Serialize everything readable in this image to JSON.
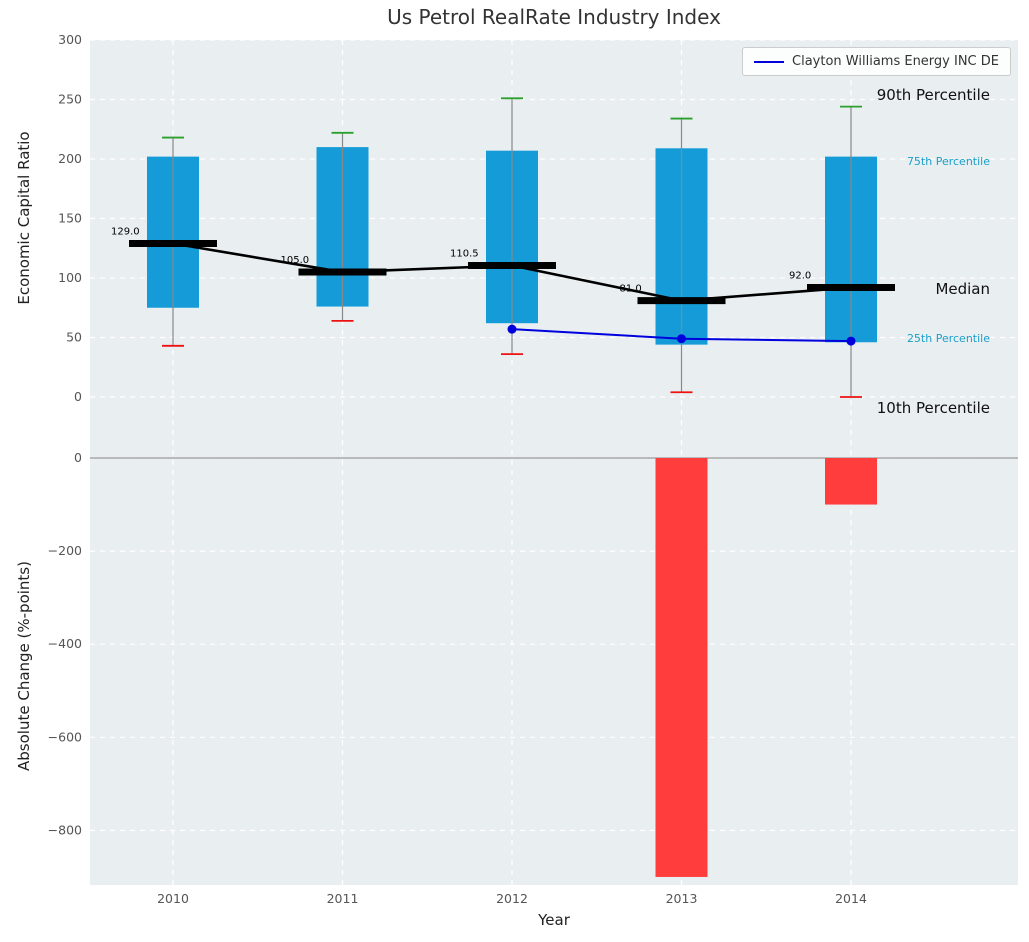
{
  "title": "Us Petrol RealRate Industry Index",
  "legend": {
    "series_label": "Clayton Williams Energy INC DE"
  },
  "axes": {
    "top_ylabel": "Economic Capital Ratio",
    "bottom_ylabel": "Absolute Change (%-points)",
    "xlabel": "Year"
  },
  "right_labels": {
    "p90": "90th Percentile",
    "p75": "75th Percentile",
    "median": "Median",
    "p25": "25th Percentile",
    "p10": "10th Percentile"
  },
  "colors": {
    "bar_blue": "#159cd8",
    "bar_red": "#ff3d3d",
    "cap_green": "#2ca02c",
    "cap_red": "#ee1111",
    "median_black": "#000000",
    "clayton_blue": "#0000dd",
    "whisker_gray": "#888888",
    "plot_bg": "#e9eef1",
    "grid_white": "#ffffff",
    "cyan_label": "#1a9fc9",
    "tick_color": "#555555",
    "zero_line": "#999999"
  },
  "chart_data": [
    {
      "type": "boxplot",
      "title": "Us Petrol RealRate Industry Index",
      "xlabel": "Year",
      "ylabel": "Economic Capital Ratio",
      "categories": [
        "2010",
        "2011",
        "2012",
        "2013",
        "2014"
      ],
      "yticks": [
        0,
        50,
        100,
        150,
        200,
        250,
        300
      ],
      "ylim": [
        -42,
        300
      ],
      "grid": true,
      "legend_position": "upper right",
      "series": [
        {
          "key": "p90",
          "name": "90th Percentile",
          "values": [
            218,
            222,
            251,
            234,
            244
          ]
        },
        {
          "key": "p75",
          "name": "75th Percentile",
          "values": [
            202,
            210,
            207,
            209,
            202
          ]
        },
        {
          "key": "median",
          "name": "Median",
          "values": [
            129.0,
            105.0,
            110.5,
            81.0,
            92.0
          ]
        },
        {
          "key": "p25",
          "name": "25th Percentile",
          "values": [
            75,
            76,
            62,
            44,
            46
          ]
        },
        {
          "key": "p10",
          "name": "10th Percentile",
          "values": [
            43,
            64,
            36,
            4,
            0
          ]
        },
        {
          "key": "company",
          "name": "Clayton Williams Energy INC DE",
          "values": [
            null,
            null,
            57,
            49,
            47
          ]
        }
      ],
      "median_labels": [
        "129.0",
        "105.0",
        "110.5",
        "81.0",
        "92.0"
      ]
    },
    {
      "type": "bar",
      "xlabel": "Year",
      "ylabel": "Absolute Change (%-points)",
      "categories": [
        "2010",
        "2011",
        "2012",
        "2013",
        "2014"
      ],
      "values": [
        0,
        0,
        0,
        -900,
        -100
      ],
      "yticks": [
        0,
        -200,
        -400,
        -600,
        -800
      ],
      "ylim": [
        -920,
        30
      ],
      "grid": true
    }
  ]
}
